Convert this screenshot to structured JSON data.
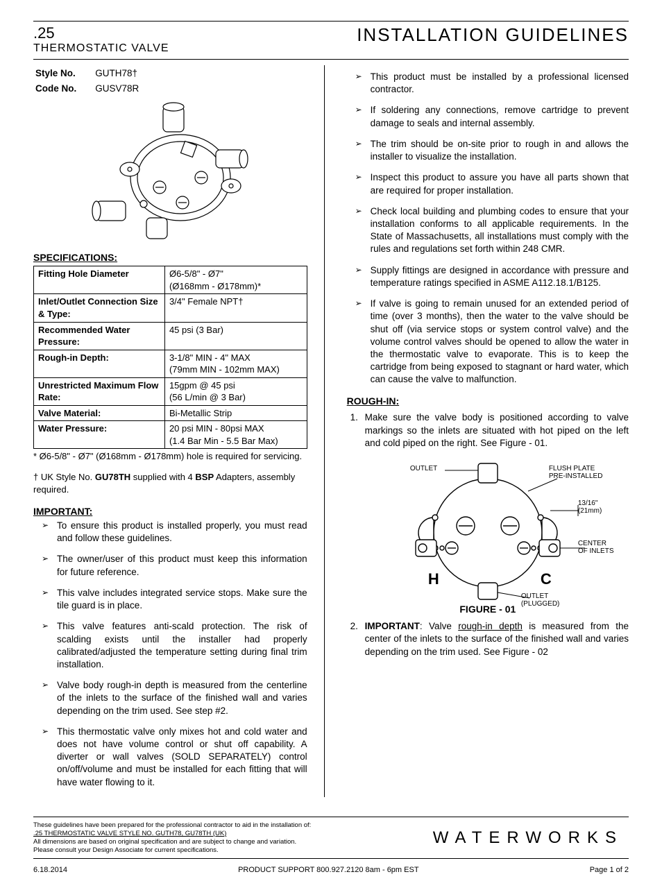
{
  "header": {
    "model": ".25",
    "subtitle": "THERMOSTATIC VALVE",
    "title_right": "INSTALLATION GUIDELINES"
  },
  "style_block": {
    "style_label": "Style No.",
    "style_value": "GUTH78†",
    "code_label": "Code No.",
    "code_value": "GUSV78R"
  },
  "spec_heading": "SPECIFICATIONS:",
  "specs": [
    {
      "label": "Fitting Hole Diameter",
      "value": "Ø6-5/8\" - Ø7\"\n(Ø168mm - Ø178mm)*"
    },
    {
      "label": "Inlet/Outlet Connection Size & Type:",
      "value": "3/4\" Female NPT†"
    },
    {
      "label": "Recommended Water Pressure:",
      "value": "45 psi (3 Bar)"
    },
    {
      "label": "Rough-in Depth:",
      "value": "3-1/8\" MIN - 4\" MAX\n(79mm MIN - 102mm MAX)"
    },
    {
      "label": "Unrestricted Maximum Flow Rate:",
      "value": "15gpm @ 45 psi\n(56 L/min @ 3 Bar)"
    },
    {
      "label": "Valve Material:",
      "value": "Bi-Metallic Strip"
    },
    {
      "label": "Water Pressure:",
      "value": "20 psi MIN - 80psi MAX\n(1.4 Bar Min - 5.5 Bar Max)"
    }
  ],
  "footnote1": "* Ø6-5/8\" - Ø7\" (Ø168mm - Ø178mm) hole is required for servicing.",
  "footnote2_prefix": "† UK Style No. ",
  "footnote2_bold1": "GU78TH",
  "footnote2_mid": " supplied with 4 ",
  "footnote2_bold2": "BSP",
  "footnote2_suffix": " Adapters, assembly required.",
  "important_heading": "IMPORTANT:",
  "important_items": [
    "To ensure this product is installed properly, you must read and follow these guidelines.",
    "The owner/user of this product must keep this information for future reference.",
    "This valve includes integrated service stops. Make sure the tile guard is in place.",
    "This valve features anti-scald protection. The risk of scalding exists until the installer had properly calibrated/adjusted the temperature setting during final trim installation.",
    "Valve body rough-in depth is measured from the centerline of the inlets to the surface of the finished wall and varies depending on the trim used.  See step #2.",
    "This thermostatic valve only mixes hot and cold water and does not have volume control or shut off capability.  A diverter or wall valves (SOLD SEPARATELY) control on/off/volume and must be installed for each fitting that will have water flowing to it."
  ],
  "right_items": [
    "This product must be installed by a professional licensed contractor.",
    "If soldering any connections, remove cartridge to prevent damage to seals and internal assembly.",
    "The trim should be on-site prior to rough in and allows the installer to visualize the installation.",
    "Inspect this product to assure you have all parts shown that are required for proper installation.",
    "Check local building and plumbing codes to ensure that your installation conforms to all applicable requirements. In the State of Massachusetts, all installations must comply with the rules and regulations set forth within 248 CMR.",
    "Supply fittings are designed in accordance with pressure and temperature ratings specified in ASME A112.18.1/B125.",
    "If valve is going to remain unused for an extended period of time (over 3 months), then the water to the valve should be shut off (via service stops or system control valve) and the volume control valves should be opened to allow the water in the thermostatic valve to evaporate. This is to keep the cartridge from being exposed to stagnant or hard water, which can cause the valve to malfunction."
  ],
  "rough_heading": "ROUGH-IN:",
  "rough1": "Make sure the valve body is positioned according to valve markings so the inlets are situated with hot piped on the left and cold piped on the right.  See Figure - 01.",
  "rough2_bold": "IMPORTANT",
  "rough2_a": ":  Valve ",
  "rough2_u": "rough-in depth",
  "rough2_b": " is measured from the center of the inlets to the surface of the finished wall and varies depending on the trim used. See Figure - 02",
  "figure": {
    "outlet": "OUTLET",
    "flush_plate": "FLUSH PLATE\nPRE-INSTALLED",
    "dim": "13/16\"\n(21mm)",
    "center_inlets": "CENTER\nOF INLETS",
    "outlet_plugged": "OUTLET\n(PLUGGED)",
    "H": "H",
    "C": "C",
    "caption": "FIGURE - 01"
  },
  "disclaimer": {
    "line1": "These guidelines have been prepared for the professional contractor to aid in the installation of:",
    "line2": ".25 THERMOSTATIC VALVE STYLE NO. GUTH78, GU78TH (UK)",
    "line3": "All dimensions are based on original specification and are subject to change and variation.",
    "line4": "Please consult your Design Associate for current specifications."
  },
  "brand": "WATERWORKS",
  "footer": {
    "date": "6.18.2014",
    "support": "PRODUCT SUPPORT 800.927.2120 8am - 6pm EST",
    "page": "Page 1 of 2"
  },
  "colors": {
    "text": "#000000",
    "background": "#ffffff",
    "svg_stroke": "#000000",
    "svg_fill_light": "#ffffff",
    "svg_fill_gray": "#e3e3e3"
  }
}
